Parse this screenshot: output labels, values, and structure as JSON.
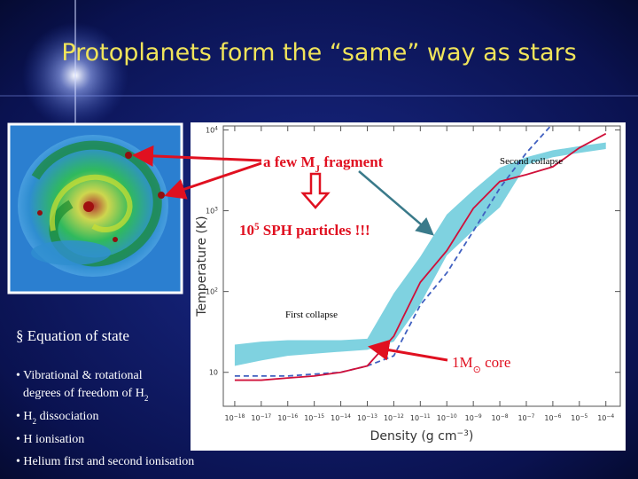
{
  "title": "Protoplanets form the “same” way as stars",
  "bullets": {
    "heading": "§ Equation of state",
    "lines": [
      [
        {
          "t": "• Vibrational & rotational"
        }
      ],
      [
        {
          "t": "degrees of freedom of H"
        },
        {
          "t": "2",
          "sub": true
        }
      ],
      [
        {
          "t": "• H"
        },
        {
          "t": "2",
          "sub": true
        },
        {
          "t": " dissociation"
        }
      ],
      [
        {
          "t": "• H ionisation"
        }
      ],
      [
        {
          "t": "• Helium first and second ionisation"
        }
      ]
    ]
  },
  "annotations": {
    "fragment": [
      {
        "t": "a few M"
      },
      {
        "t": "J",
        "sub": true
      },
      {
        "t": " fragment"
      }
    ],
    "particles": [
      {
        "t": "10"
      },
      {
        "t": "5",
        "sup": true
      },
      {
        "t": " SPH particles !!!"
      }
    ],
    "second_collapse": [
      {
        "t": "Second collapse"
      }
    ],
    "first_collapse": [
      {
        "t": "First collapse"
      }
    ],
    "core": [
      {
        "t": "1M"
      },
      {
        "t": "⊙",
        "sub": true
      },
      {
        "t": " core"
      }
    ]
  },
  "chart_data": {
    "type": "line",
    "x_label": [
      {
        "t": "Density (g cm"
      },
      {
        "t": "−3",
        "sup": true
      },
      {
        "t": ")"
      }
    ],
    "y_label": "Temperature (K)",
    "xscale": "log",
    "yscale": "log",
    "xlim": [
      3.7e-19,
      0.00035
    ],
    "ylim": [
      3.8,
      11200
    ],
    "xticks": [
      {
        "value": 1e-18,
        "label": "10",
        "sup": "−18"
      },
      {
        "value": 1e-17,
        "label": "10",
        "sup": "−17"
      },
      {
        "value": 1e-16,
        "label": "10",
        "sup": "−16"
      },
      {
        "value": 1e-15,
        "label": "10",
        "sup": "−15"
      },
      {
        "value": 1e-14,
        "label": "10",
        "sup": "−14"
      },
      {
        "value": 1e-13,
        "label": "10",
        "sup": "−13"
      },
      {
        "value": 1e-12,
        "label": "10",
        "sup": "−12"
      },
      {
        "value": 1e-11,
        "label": "10",
        "sup": "−11"
      },
      {
        "value": 1e-10,
        "label": "10",
        "sup": "−10"
      },
      {
        "value": 1e-09,
        "label": "10",
        "sup": "−9"
      },
      {
        "value": 1e-08,
        "label": "10",
        "sup": "−8"
      },
      {
        "value": 1e-07,
        "label": "10",
        "sup": "−7"
      },
      {
        "value": 1e-06,
        "label": "10",
        "sup": "−6"
      },
      {
        "value": 1e-05,
        "label": "10",
        "sup": "−5"
      },
      {
        "value": 0.0001,
        "label": "10",
        "sup": "−4"
      }
    ],
    "yticks": [
      10,
      {
        "value": 100,
        "label": "10",
        "sup": "2"
      },
      {
        "value": 1000,
        "label": "10",
        "sup": "3"
      },
      {
        "value": 10000,
        "label": "10",
        "sup": "4"
      }
    ],
    "x": [
      1e-18,
      1e-17,
      1e-16,
      1e-15,
      1e-14,
      1e-13,
      1e-12,
      1e-11,
      1e-10,
      1e-09,
      1e-08,
      1e-07,
      1e-06,
      1e-05,
      0.0001
    ],
    "series": [
      {
        "color": "#7fd2e0",
        "style": "band",
        "values": [
          12,
          14,
          16,
          17,
          18,
          19,
          24,
          70,
          280,
          570,
          1100,
          3700,
          4600,
          5200,
          5800
        ],
        "upper": [
          22,
          24,
          25,
          25,
          25,
          26,
          95,
          270,
          900,
          1800,
          3400,
          4600,
          5600,
          6300,
          7000
        ]
      },
      {
        "color": "#4060c0",
        "style": "dashed",
        "values": [
          9,
          9,
          9,
          9.5,
          10,
          12,
          16,
          68,
          170,
          560,
          1900,
          5200,
          12000,
          null,
          null
        ]
      },
      {
        "color": "#d0103a",
        "style": "solid",
        "values": [
          8,
          8,
          8.5,
          9,
          10,
          12,
          28,
          130,
          320,
          1070,
          2300,
          2800,
          3500,
          6000,
          9000
        ]
      }
    ]
  }
}
